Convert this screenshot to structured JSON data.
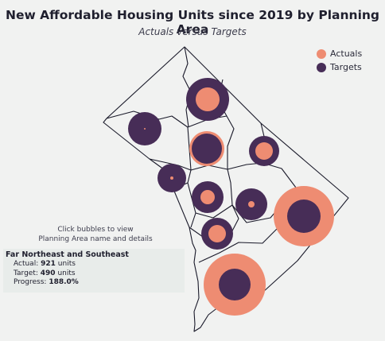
{
  "title": "New Affordable Housing Units since 2019 by Planning Area",
  "subtitle": "Actuals versus Targets",
  "legend": {
    "actuals_label": "Actuals",
    "targets_label": "Targets"
  },
  "colors": {
    "actuals": "#ee8c72",
    "targets": "#472d57",
    "border": "#1a1a2a",
    "background": "#f1f2f1"
  },
  "hint": {
    "line1": "Click bubbles to view",
    "line2": "Planning Area name and details"
  },
  "info": {
    "area_name": "Far Northeast and Southeast",
    "actual_label": "Actual:",
    "actual_value": "921",
    "target_label": "Target:",
    "target_value": "490",
    "progress_label": "Progress:",
    "progress_value": "188.0%",
    "units": "units"
  },
  "map_data": {
    "bubbles": [
      {
        "id": "bubble-1",
        "actual_radius": 15,
        "target_radius": 27
      },
      {
        "id": "bubble-2",
        "actual_radius": 1,
        "target_radius": 21
      },
      {
        "id": "bubble-3",
        "actual_radius": 22,
        "target_radius": 19
      },
      {
        "id": "bubble-4",
        "actual_radius": 11,
        "target_radius": 19
      },
      {
        "id": "bubble-5",
        "actual_radius": 2,
        "target_radius": 18
      },
      {
        "id": "bubble-6",
        "actual_radius": 9,
        "target_radius": 20
      },
      {
        "id": "bubble-7",
        "actual_radius": 4,
        "target_radius": 20
      },
      {
        "id": "bubble-8",
        "actual_radius": 11,
        "target_radius": 20
      },
      {
        "id": "bubble-9",
        "actual_radius": 38,
        "target_radius": 21
      },
      {
        "id": "bubble-10",
        "actual_radius": 39,
        "target_radius": 20
      }
    ]
  }
}
